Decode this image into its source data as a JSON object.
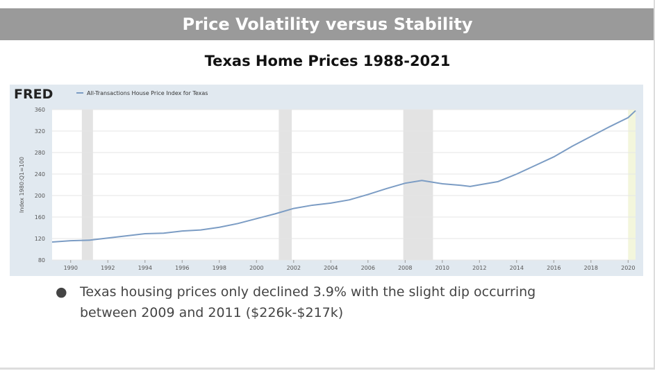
{
  "slide_title": "Price Volatility versus Stability",
  "bullets": [
    "Texas housing prices only declined 3.9% with the slight dip occurring between 2009 and 2011 ($226k-$217k)"
  ],
  "chart_data": {
    "type": "line",
    "title": "Texas Home Prices 1988-2021",
    "logo": "FRED",
    "y_label": "Index 1980:Q1=100",
    "series": [
      {
        "name": "All-Transactions House Price Index for Texas",
        "color": "#7b9cc4",
        "x": [
          1989,
          1990,
          1991,
          1992,
          1993,
          1994,
          1995,
          1996,
          1997,
          1998,
          1999,
          2000,
          2001,
          2002,
          2003,
          2004,
          2005,
          2006,
          2007,
          2008,
          2008.9,
          2010,
          2011,
          2011.5,
          2012,
          2013,
          2014,
          2015,
          2016,
          2017,
          2018,
          2019,
          2020,
          2020.4
        ],
        "values": [
          113.5,
          116,
          117,
          121,
          125,
          129,
          130,
          134,
          136,
          141,
          148,
          157,
          166,
          176,
          182,
          186,
          192,
          202,
          213,
          223,
          228,
          222,
          219,
          217,
          220,
          226,
          240,
          256,
          272,
          292,
          310,
          328,
          345,
          358
        ]
      }
    ],
    "shading": [
      {
        "start": 1990.6,
        "end": 1991.2,
        "color": "#e3e3e3"
      },
      {
        "start": 2001.2,
        "end": 2001.9,
        "color": "#e3e3e3"
      },
      {
        "start": 2007.9,
        "end": 2009.5,
        "color": "#e3e3e3"
      },
      {
        "start": 2020.0,
        "end": 2020.4,
        "color": "#f3f6dc"
      }
    ],
    "xlim": [
      1989,
      2020.4
    ],
    "ylim": [
      80,
      360
    ],
    "xticks": [
      1990,
      1992,
      1994,
      1996,
      1998,
      2000,
      2002,
      2004,
      2006,
      2008,
      2010,
      2012,
      2014,
      2016,
      2018,
      2020
    ],
    "yticks": [
      80,
      120,
      160,
      200,
      240,
      280,
      320,
      360
    ],
    "grid": true
  }
}
